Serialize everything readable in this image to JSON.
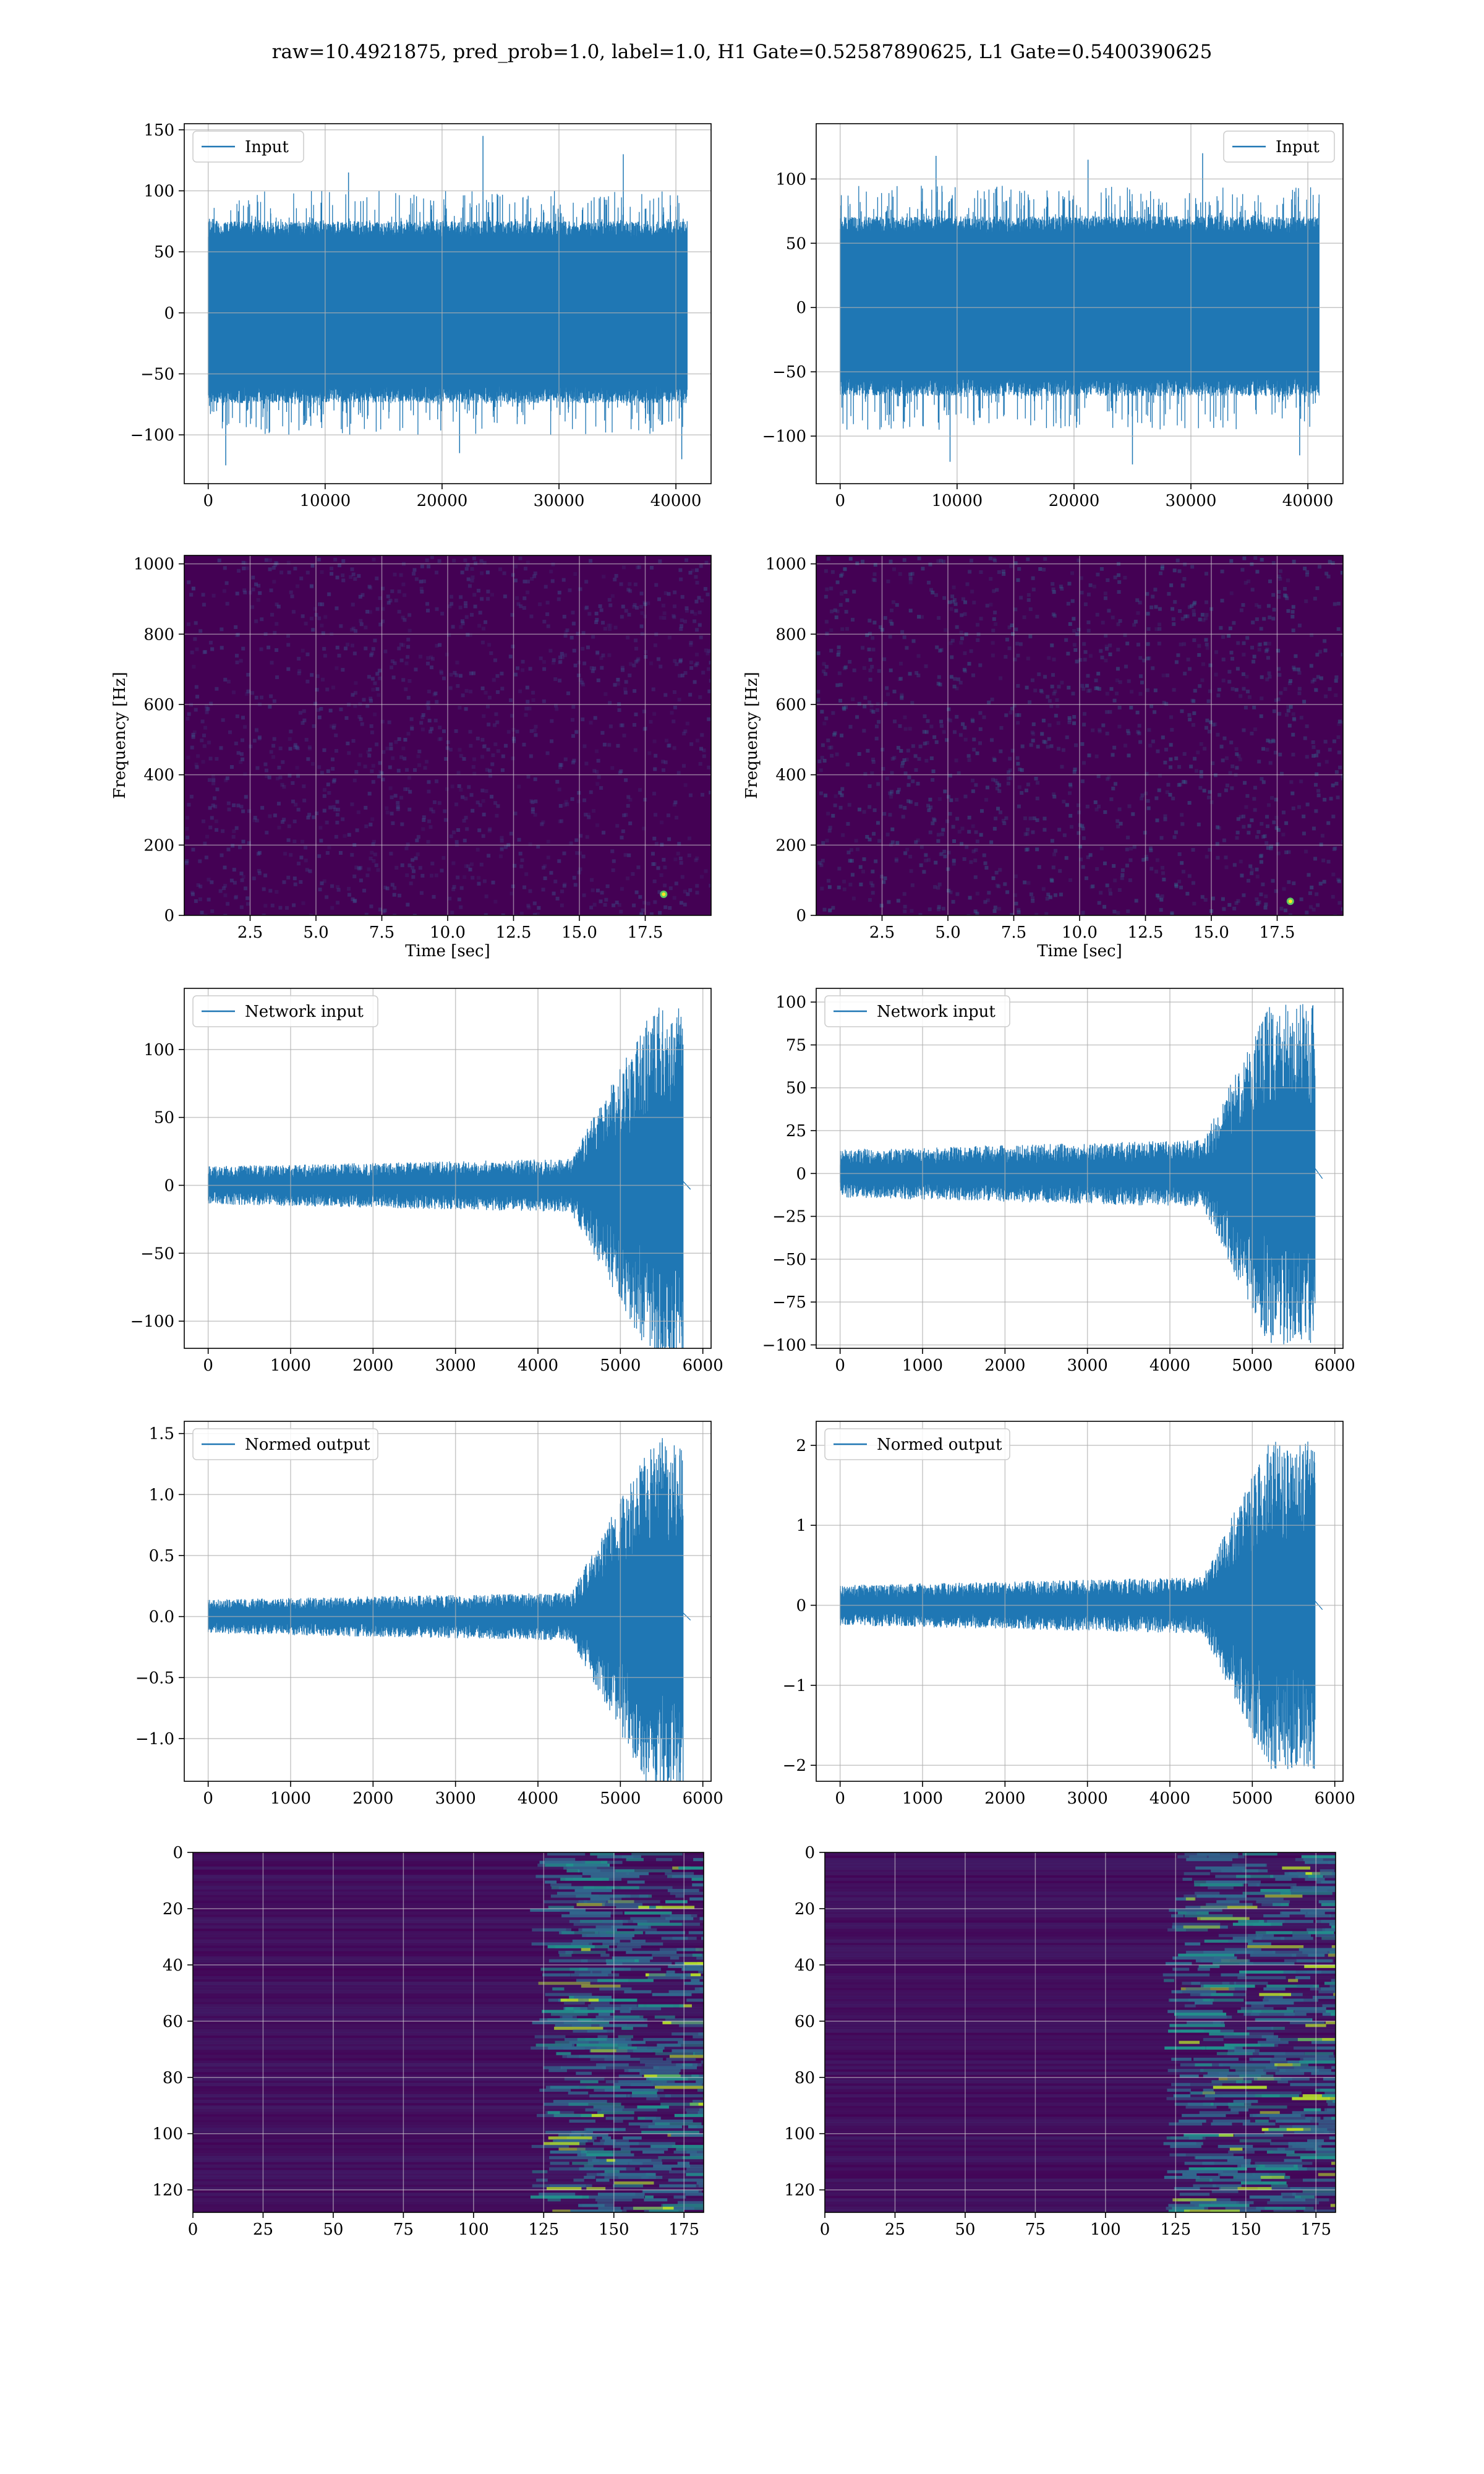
{
  "figure": {
    "suptitle": "raw=10.4921875, pred_prob=1.0, label=1.0, H1 Gate=0.52587890625, L1 Gate=0.5400390625",
    "line_color": "#1f77b4"
  },
  "chart_data": [
    {
      "id": "h1-input",
      "type": "line",
      "legend": "Input",
      "legend_loc": "upper-left",
      "grid": true,
      "xlim": [
        -2048,
        43008
      ],
      "ylim": [
        -140,
        155
      ],
      "xticks": [
        0,
        10000,
        20000,
        30000,
        40000
      ],
      "xtick_labels": [
        "0",
        "10000",
        "20000",
        "30000",
        "40000"
      ],
      "yticks": [
        -100,
        -50,
        0,
        50,
        100,
        150
      ],
      "ytick_labels": [
        "−100",
        "−50",
        "0",
        "50",
        "100",
        "150"
      ],
      "x_range": [
        0,
        40960
      ],
      "band": [
        -60,
        62
      ],
      "peak": [
        -100,
        100
      ],
      "spikes": [
        [
          12000,
          115
        ],
        [
          21500,
          -115
        ],
        [
          23500,
          145
        ],
        [
          35500,
          130
        ],
        [
          1500,
          -125
        ],
        [
          40500,
          -120
        ]
      ]
    },
    {
      "id": "l1-input",
      "type": "line",
      "legend": "Input",
      "legend_loc": "upper-right",
      "grid": true,
      "xlim": [
        -2048,
        43008
      ],
      "ylim": [
        -137,
        143
      ],
      "xticks": [
        0,
        10000,
        20000,
        30000,
        40000
      ],
      "xtick_labels": [
        "0",
        "10000",
        "20000",
        "30000",
        "40000"
      ],
      "yticks": [
        -100,
        -50,
        0,
        50,
        100
      ],
      "ytick_labels": [
        "−100",
        "−50",
        "0",
        "50",
        "100"
      ],
      "x_range": [
        0,
        40960
      ],
      "band": [
        -55,
        58
      ],
      "peak": [
        -95,
        95
      ],
      "spikes": [
        [
          8200,
          118
        ],
        [
          9400,
          -120
        ],
        [
          21200,
          115
        ],
        [
          25000,
          -122
        ],
        [
          31000,
          120
        ],
        [
          39300,
          -115
        ]
      ]
    },
    {
      "id": "h1-spec",
      "type": "heatmap",
      "grid": true,
      "xlabel": "Time [sec]",
      "ylabel": "Frequency [Hz]",
      "xlim": [
        0,
        20
      ],
      "ylim": [
        0,
        1024
      ],
      "xticks": [
        2.5,
        5,
        7.5,
        10,
        12.5,
        15,
        17.5
      ],
      "xtick_labels": [
        "2.5",
        "5.0",
        "7.5",
        "10.0",
        "12.5",
        "15.0",
        "17.5"
      ],
      "yticks": [
        0,
        200,
        400,
        600,
        800,
        1000
      ],
      "ytick_labels": [
        "0",
        "200",
        "400",
        "600",
        "800",
        "1000"
      ],
      "bg": "#440154",
      "speckle": "#3b528b",
      "hotspot": [
        18.2,
        60
      ]
    },
    {
      "id": "l1-spec",
      "type": "heatmap",
      "grid": true,
      "xlabel": "Time [sec]",
      "ylabel": "Frequency [Hz]",
      "xlim": [
        0,
        20
      ],
      "ylim": [
        0,
        1024
      ],
      "xticks": [
        2.5,
        5,
        7.5,
        10,
        12.5,
        15,
        17.5
      ],
      "xtick_labels": [
        "2.5",
        "5.0",
        "7.5",
        "10.0",
        "12.5",
        "15.0",
        "17.5"
      ],
      "yticks": [
        0,
        200,
        400,
        600,
        800,
        1000
      ],
      "ytick_labels": [
        "0",
        "200",
        "400",
        "600",
        "800",
        "1000"
      ],
      "bg": "#440154",
      "speckle": "#31688e",
      "hotspot": [
        18.0,
        40
      ]
    },
    {
      "id": "h1-network",
      "type": "line",
      "legend": "Network input",
      "legend_loc": "upper-left",
      "grid": true,
      "xlim": [
        -290,
        6100
      ],
      "ylim": [
        -120,
        145
      ],
      "xticks": [
        0,
        1000,
        2000,
        3000,
        4000,
        5000,
        6000
      ],
      "xtick_labels": [
        "0",
        "1000",
        "2000",
        "3000",
        "4000",
        "5000",
        "6000"
      ],
      "yticks": [
        -100,
        -50,
        0,
        50,
        100
      ],
      "ytick_labels": [
        "−100",
        "−50",
        "0",
        "50",
        "100"
      ],
      "n": 5760,
      "base": 10,
      "chirp_start": 4400,
      "chirp_peak": 5400,
      "peak": 125,
      "tail": [
        5760,
        5850
      ]
    },
    {
      "id": "l1-network",
      "type": "line",
      "legend": "Network input",
      "legend_loc": "upper-left",
      "grid": true,
      "xlim": [
        -290,
        6100
      ],
      "ylim": [
        -102,
        108
      ],
      "xticks": [
        0,
        1000,
        2000,
        3000,
        4000,
        5000,
        6000
      ],
      "xtick_labels": [
        "0",
        "1000",
        "2000",
        "3000",
        "4000",
        "5000",
        "6000"
      ],
      "yticks": [
        -100,
        -75,
        -50,
        -25,
        0,
        25,
        50,
        75,
        100
      ],
      "ytick_labels": [
        "−100",
        "−75",
        "−50",
        "−25",
        "0",
        "25",
        "50",
        "75",
        "100"
      ],
      "n": 5760,
      "base": 10,
      "chirp_start": 4400,
      "chirp_peak": 5200,
      "peak": 95,
      "tail": [
        5760,
        5850
      ]
    },
    {
      "id": "h1-normed",
      "type": "line",
      "legend": "Normed output",
      "legend_loc": "upper-left",
      "grid": true,
      "xlim": [
        -290,
        6100
      ],
      "ylim": [
        -1.35,
        1.6
      ],
      "xticks": [
        0,
        1000,
        2000,
        3000,
        4000,
        5000,
        6000
      ],
      "xtick_labels": [
        "0",
        "1000",
        "2000",
        "3000",
        "4000",
        "5000",
        "6000"
      ],
      "yticks": [
        -1,
        -0.5,
        0,
        0.5,
        1,
        1.5
      ],
      "ytick_labels": [
        "−1.0",
        "−0.5",
        "0.0",
        "0.5",
        "1.0",
        "1.5"
      ],
      "n": 5760,
      "base": 0.1,
      "chirp_start": 4400,
      "chirp_peak": 5400,
      "peak": 1.4,
      "tail": [
        5760,
        5850
      ]
    },
    {
      "id": "l1-normed",
      "type": "line",
      "legend": "Normed output",
      "legend_loc": "upper-left",
      "grid": true,
      "xlim": [
        -290,
        6100
      ],
      "ylim": [
        -2.2,
        2.3
      ],
      "xticks": [
        0,
        1000,
        2000,
        3000,
        4000,
        5000,
        6000
      ],
      "xtick_labels": [
        "0",
        "1000",
        "2000",
        "3000",
        "4000",
        "5000",
        "6000"
      ],
      "yticks": [
        -2,
        -1,
        0,
        1,
        2
      ],
      "ytick_labels": [
        "−2",
        "−1",
        "0",
        "1",
        "2"
      ],
      "n": 5760,
      "base": 0.18,
      "chirp_start": 4400,
      "chirp_peak": 5200,
      "peak": 1.95,
      "tail": [
        5760,
        5850
      ]
    },
    {
      "id": "h1-features",
      "type": "heatmap",
      "grid": true,
      "inverted_y": true,
      "xlim": [
        0,
        182
      ],
      "ylim": [
        128,
        0
      ],
      "xticks": [
        0,
        25,
        50,
        75,
        100,
        125,
        150,
        175
      ],
      "xtick_labels": [
        "0",
        "25",
        "50",
        "75",
        "100",
        "125",
        "150",
        "175"
      ],
      "yticks": [
        0,
        20,
        40,
        60,
        80,
        100,
        120
      ],
      "ytick_labels": [
        "0",
        "20",
        "40",
        "60",
        "80",
        "100",
        "120"
      ],
      "bg": "#440154",
      "activity_start": 120
    },
    {
      "id": "l1-features",
      "type": "heatmap",
      "grid": true,
      "inverted_y": true,
      "xlim": [
        0,
        182
      ],
      "ylim": [
        128,
        0
      ],
      "xticks": [
        0,
        25,
        50,
        75,
        100,
        125,
        150,
        175
      ],
      "xtick_labels": [
        "0",
        "25",
        "50",
        "75",
        "100",
        "125",
        "150",
        "175"
      ],
      "yticks": [
        0,
        20,
        40,
        60,
        80,
        100,
        120
      ],
      "ytick_labels": [
        "0",
        "20",
        "40",
        "60",
        "80",
        "100",
        "120"
      ],
      "bg": "#440154",
      "activity_start": 120
    }
  ]
}
